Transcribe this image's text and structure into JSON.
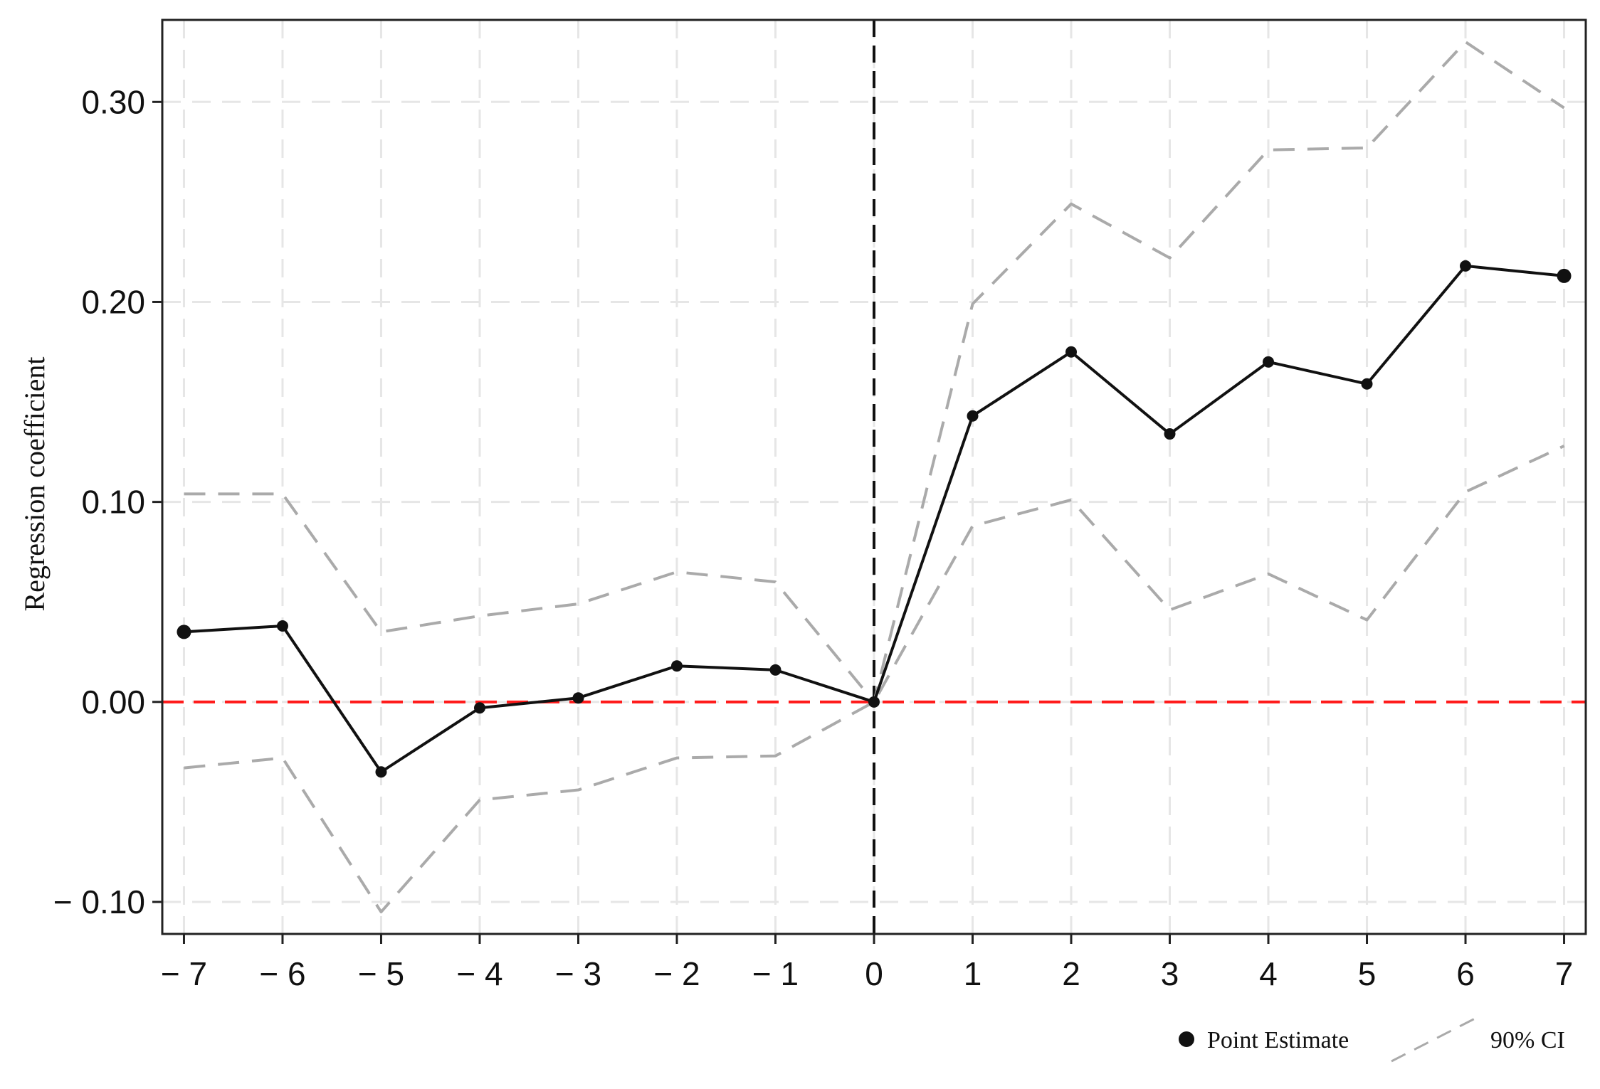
{
  "chart_data": {
    "type": "line",
    "ylabel": "Regression coefficient",
    "xlabel": "",
    "x": [
      -7,
      -6,
      -5,
      -4,
      -3,
      -2,
      -1,
      0,
      1,
      2,
      3,
      4,
      5,
      6,
      7
    ],
    "x_tick_labels": [
      "− 7",
      "− 6",
      "− 5",
      "− 4",
      "− 3",
      "− 2",
      "− 1",
      "0",
      "1",
      "2",
      "3",
      "4",
      "5",
      "6",
      "7"
    ],
    "y_ticks": [
      -0.1,
      0.0,
      0.1,
      0.2,
      0.3
    ],
    "y_tick_labels": [
      "− 0.10",
      "0.00",
      "0.10",
      "0.20",
      "0.30"
    ],
    "xlim": [
      -7.22,
      7.22
    ],
    "ylim": [
      -0.116,
      0.341
    ],
    "grid": true,
    "reference_lines": [
      {
        "axis": "y",
        "value": 0,
        "color": "#ff1a1a",
        "style": "dashed"
      },
      {
        "axis": "x",
        "value": 0,
        "color": "#111111",
        "style": "dashed"
      }
    ],
    "series": [
      {
        "name": "Point Estimate",
        "style": "solid-with-markers",
        "color": "#111111",
        "values": [
          0.035,
          0.038,
          -0.035,
          -0.003,
          0.002,
          0.018,
          0.016,
          0.0,
          0.143,
          0.175,
          0.134,
          0.17,
          0.159,
          0.218,
          0.213
        ]
      },
      {
        "name": "90% CI",
        "part": "upper",
        "style": "dashed",
        "color": "#aaaaaa",
        "values": [
          0.104,
          0.104,
          0.035,
          0.043,
          0.049,
          0.065,
          0.06,
          0.0,
          0.199,
          0.249,
          0.222,
          0.276,
          0.277,
          0.33,
          0.297
        ]
      },
      {
        "name": "90% CI",
        "part": "lower",
        "style": "dashed",
        "color": "#aaaaaa",
        "values": [
          -0.033,
          -0.028,
          -0.105,
          -0.049,
          -0.044,
          -0.028,
          -0.027,
          0.0,
          0.088,
          0.101,
          0.046,
          0.064,
          0.041,
          0.105,
          0.128
        ]
      }
    ],
    "legend": {
      "placement": "bottom-right",
      "items": [
        {
          "label": "Point Estimate",
          "marker": "dot"
        },
        {
          "label": "90% CI",
          "marker": "dashed-line"
        }
      ]
    }
  }
}
